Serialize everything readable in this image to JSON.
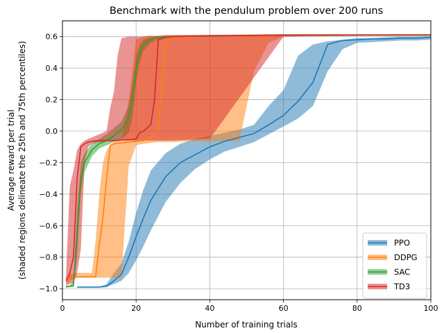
{
  "chart_data": {
    "type": "line",
    "title": "Benchmark with the pendulum problem over 200 runs",
    "xlabel": "Number of training trials",
    "ylabel_lines": [
      "Average reward per trial",
      "(shaded regions delineate the 25th and 75th percentiles)"
    ],
    "xlim": [
      0,
      100
    ],
    "ylim": [
      -1.07,
      0.7
    ],
    "x_ticks": [
      0,
      20,
      40,
      60,
      80,
      100
    ],
    "y_ticks": [
      -1.0,
      -0.8,
      -0.6,
      -0.4,
      -0.2,
      0.0,
      0.2,
      0.4,
      0.6
    ],
    "x_tick_labels": [
      "0",
      "20",
      "40",
      "60",
      "80",
      "100"
    ],
    "y_tick_labels": [
      "−1.0",
      "−0.8",
      "−0.6",
      "−0.4",
      "−0.2",
      "0.0",
      "0.2",
      "0.4",
      "0.6"
    ],
    "grid": true,
    "legend_position": "bottom-right",
    "series": [
      {
        "name": "PPO",
        "color": "#1f77b4",
        "x": [
          4,
          8,
          10,
          12,
          14,
          16,
          18,
          20,
          22,
          24,
          28,
          32,
          36,
          40,
          44,
          48,
          52,
          56,
          60,
          64,
          68,
          72,
          76,
          80,
          84,
          88,
          92,
          96,
          100
        ],
        "median": [
          -0.99,
          -0.99,
          -0.99,
          -0.985,
          -0.95,
          -0.91,
          -0.8,
          -0.67,
          -0.55,
          -0.44,
          -0.29,
          -0.2,
          -0.15,
          -0.1,
          -0.065,
          -0.04,
          -0.015,
          0.04,
          0.1,
          0.19,
          0.31,
          0.55,
          0.575,
          0.58,
          0.585,
          0.585,
          0.59,
          0.59,
          0.595
        ],
        "low": [
          -0.99,
          -0.99,
          -0.99,
          -0.99,
          -0.97,
          -0.95,
          -0.9,
          -0.82,
          -0.73,
          -0.63,
          -0.45,
          -0.33,
          -0.24,
          -0.18,
          -0.13,
          -0.1,
          -0.07,
          -0.02,
          0.03,
          0.08,
          0.16,
          0.38,
          0.52,
          0.56,
          0.565,
          0.57,
          0.575,
          0.575,
          0.58
        ],
        "high": [
          -0.99,
          -0.99,
          -0.99,
          -0.97,
          -0.9,
          -0.84,
          -0.7,
          -0.52,
          -0.37,
          -0.25,
          -0.14,
          -0.08,
          -0.05,
          -0.03,
          -0.01,
          0.01,
          0.04,
          0.16,
          0.26,
          0.48,
          0.55,
          0.57,
          0.58,
          0.59,
          0.59,
          0.595,
          0.6,
          0.6,
          0.6
        ]
      },
      {
        "name": "DDPG",
        "color": "#ff7f0e",
        "x": [
          1,
          2,
          4,
          6,
          8,
          9,
          10,
          11,
          12,
          13,
          14,
          16,
          18,
          20,
          22,
          24,
          26,
          27,
          28,
          30,
          34,
          40,
          44,
          48,
          52,
          56,
          60,
          70,
          80,
          90,
          100
        ],
        "median": [
          -0.95,
          -0.93,
          -0.925,
          -0.925,
          -0.925,
          -0.925,
          -0.72,
          -0.55,
          -0.3,
          -0.09,
          -0.08,
          -0.075,
          -0.07,
          -0.065,
          -0.06,
          -0.04,
          0.02,
          0.3,
          0.55,
          0.59,
          0.6,
          0.605,
          0.605,
          0.605,
          0.605,
          0.605,
          0.61,
          0.61,
          0.61,
          0.61,
          0.61
        ],
        "low": [
          -0.97,
          -0.95,
          -0.93,
          -0.93,
          -0.93,
          -0.93,
          -0.93,
          -0.93,
          -0.93,
          -0.93,
          -0.93,
          -0.93,
          -0.22,
          -0.09,
          -0.08,
          -0.075,
          -0.07,
          -0.07,
          -0.07,
          -0.07,
          -0.065,
          -0.065,
          -0.065,
          -0.065,
          0.38,
          0.56,
          0.6,
          0.61,
          0.61,
          0.61,
          0.61
        ],
        "high": [
          -0.93,
          -0.91,
          -0.9,
          -0.9,
          -0.9,
          -0.7,
          -0.4,
          -0.2,
          -0.12,
          -0.09,
          -0.07,
          -0.06,
          0.2,
          0.58,
          0.6,
          0.6,
          0.605,
          0.605,
          0.605,
          0.605,
          0.605,
          0.605,
          0.605,
          0.605,
          0.61,
          0.61,
          0.61,
          0.61,
          0.61,
          0.615,
          0.615
        ]
      },
      {
        "name": "SAC",
        "color": "#2ca02c",
        "x": [
          1,
          2,
          3,
          4,
          5,
          6,
          8,
          10,
          12,
          14,
          16,
          18,
          19,
          20,
          21,
          22,
          24,
          26,
          30,
          40,
          60,
          100
        ],
        "median": [
          -0.99,
          -0.985,
          -0.98,
          -0.65,
          -0.3,
          -0.2,
          -0.12,
          -0.08,
          -0.06,
          -0.03,
          0.01,
          0.08,
          0.2,
          0.4,
          0.5,
          0.55,
          0.585,
          0.595,
          0.6,
          0.605,
          0.61,
          0.61
        ],
        "low": [
          -0.99,
          -0.99,
          -0.99,
          -0.8,
          -0.4,
          -0.26,
          -0.16,
          -0.11,
          -0.09,
          -0.07,
          -0.05,
          -0.01,
          0.08,
          0.3,
          0.44,
          0.51,
          0.56,
          0.585,
          0.595,
          0.6,
          0.605,
          0.605
        ],
        "high": [
          -0.98,
          -0.98,
          -0.95,
          -0.5,
          -0.2,
          -0.14,
          -0.08,
          -0.05,
          -0.02,
          0.02,
          0.06,
          0.16,
          0.3,
          0.48,
          0.55,
          0.58,
          0.595,
          0.6,
          0.605,
          0.61,
          0.615,
          0.615
        ]
      },
      {
        "name": "TD3",
        "color": "#d62728",
        "x": [
          1,
          2,
          3,
          4,
          5,
          6,
          7,
          8,
          10,
          12,
          13,
          14,
          15,
          16,
          18,
          20,
          21,
          22,
          23,
          24,
          25,
          26,
          28,
          30,
          40,
          60,
          100
        ],
        "median": [
          -0.95,
          -0.9,
          -0.8,
          -0.3,
          -0.1,
          -0.08,
          -0.07,
          -0.065,
          -0.06,
          -0.06,
          -0.06,
          -0.06,
          -0.06,
          -0.055,
          -0.055,
          -0.05,
          -0.01,
          0.0,
          0.02,
          0.04,
          0.2,
          0.58,
          0.595,
          0.6,
          0.605,
          0.61,
          0.61
        ],
        "low": [
          -0.98,
          -0.97,
          -0.96,
          -0.9,
          -0.75,
          -0.2,
          -0.1,
          -0.08,
          -0.07,
          -0.065,
          -0.065,
          -0.065,
          -0.065,
          -0.06,
          -0.06,
          -0.06,
          -0.06,
          -0.06,
          -0.06,
          -0.06,
          -0.06,
          -0.06,
          -0.06,
          -0.06,
          -0.05,
          0.6,
          0.61
        ],
        "high": [
          -0.9,
          -0.35,
          -0.25,
          -0.12,
          -0.08,
          -0.06,
          -0.05,
          -0.04,
          -0.02,
          0.0,
          0.15,
          0.25,
          0.48,
          0.59,
          0.6,
          0.6,
          0.6,
          0.6,
          0.605,
          0.605,
          0.605,
          0.605,
          0.61,
          0.61,
          0.61,
          0.61,
          0.61
        ]
      }
    ]
  }
}
